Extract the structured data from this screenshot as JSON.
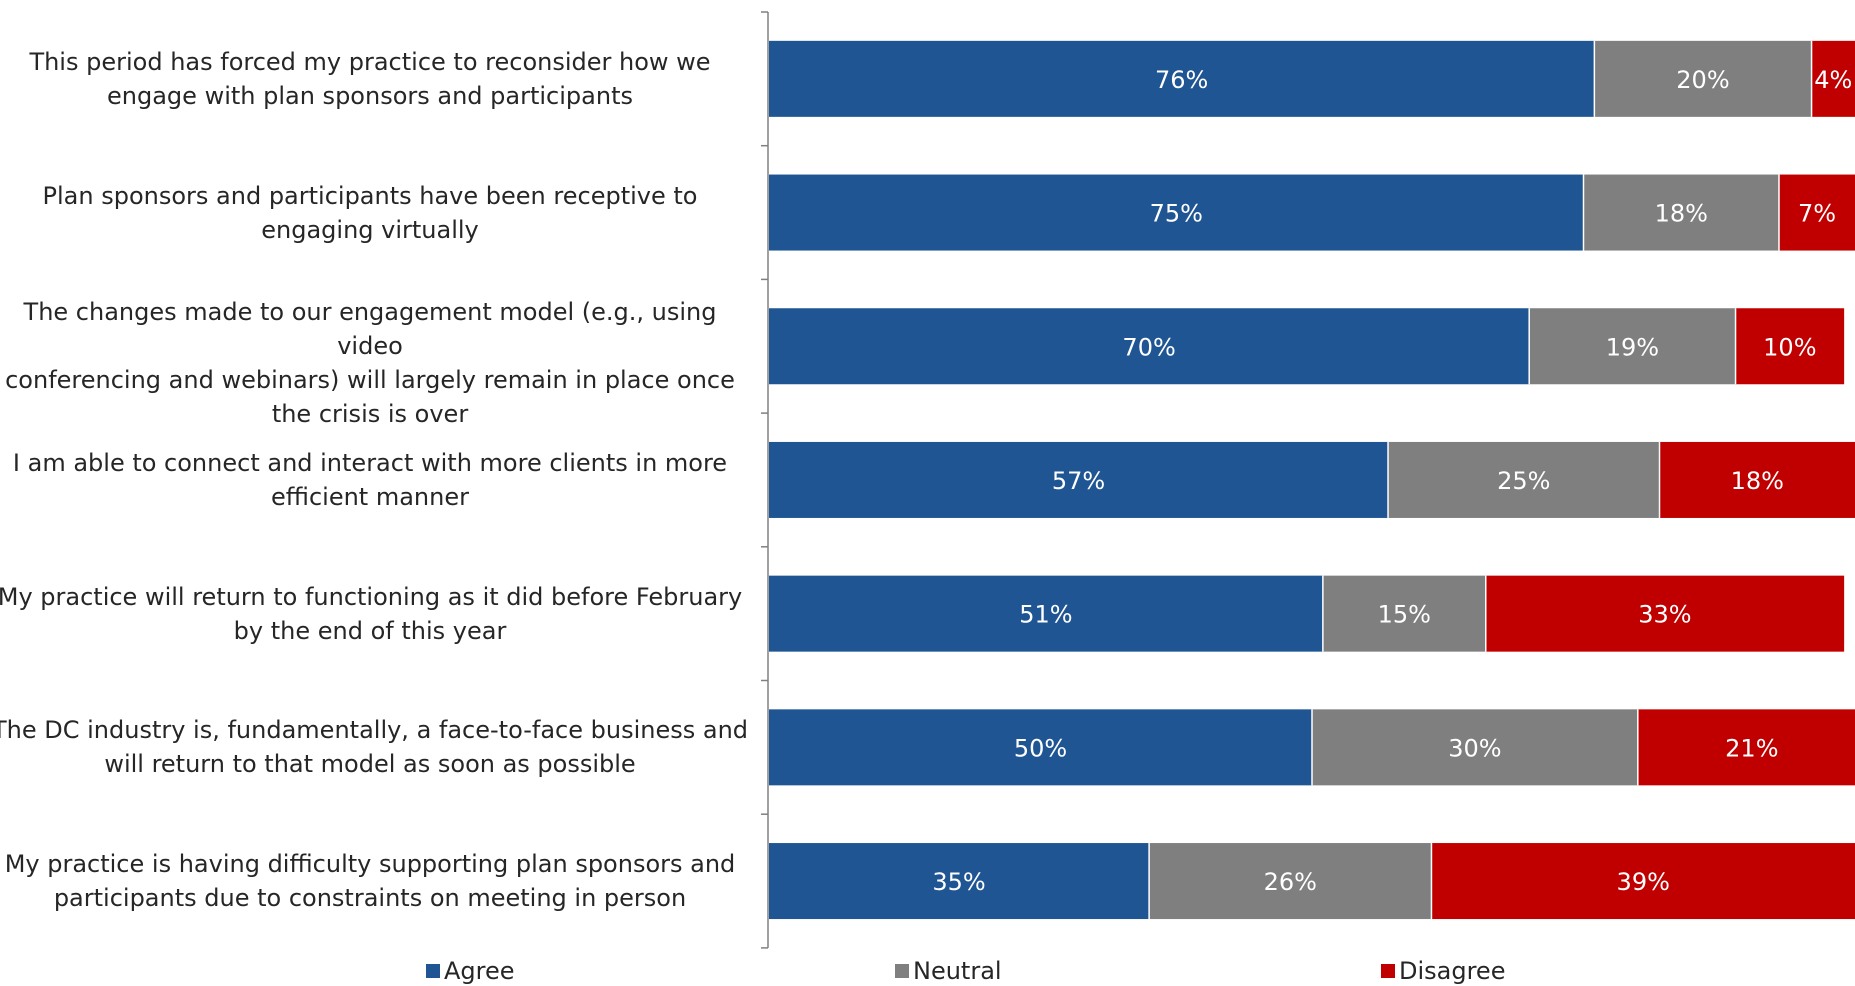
{
  "chart_data": {
    "type": "bar",
    "orientation": "horizontal",
    "stacked": true,
    "categories": [
      "This period has forced my practice to reconsider how we engage with plan sponsors and participants",
      "Plan sponsors and participants have been receptive to engaging virtually",
      "The changes made to our engagement model (e.g., using video conferencing and webinars) will largely remain in place once the crisis is over",
      "I am able to connect and interact with more clients in more efficient manner",
      "My practice will return to functioning as it did before February by the end of this year",
      "The DC industry is, fundamentally, a face-to-face business and will return to that model as soon as possible",
      "My practice is having difficulty supporting plan sponsors and participants due to constraints on meeting in person"
    ],
    "category_lines": [
      [
        "This period has forced my practice to reconsider how we",
        "engage with plan sponsors and participants"
      ],
      [
        "Plan sponsors and participants have been receptive to",
        "engaging virtually"
      ],
      [
        "The changes made to our engagement model (e.g., using video",
        "conferencing and webinars) will largely remain in place once",
        "the crisis is over"
      ],
      [
        "I am able to connect and interact with more clients in more",
        "efficient manner"
      ],
      [
        "My practice will return to functioning as it did before February",
        "by the end of this year"
      ],
      [
        "The DC industry is, fundamentally, a face-to-face business and",
        "will return to that model as soon as possible"
      ],
      [
        "My practice is having difficulty supporting plan sponsors and",
        "participants due to constraints on meeting in person"
      ]
    ],
    "series": [
      {
        "name": "Agree",
        "color": "#1f5592",
        "values": [
          76,
          75,
          70,
          57,
          51,
          50,
          35
        ]
      },
      {
        "name": "Neutral",
        "color": "#7f7f7f",
        "values": [
          20,
          18,
          19,
          25,
          15,
          30,
          26
        ]
      },
      {
        "name": "Disagree",
        "color": "#c00000",
        "values": [
          4,
          7,
          10,
          18,
          33,
          21,
          39
        ]
      }
    ],
    "value_suffix": "%",
    "xlim": [
      0,
      100
    ],
    "legend_position": "bottom",
    "grid": false
  }
}
